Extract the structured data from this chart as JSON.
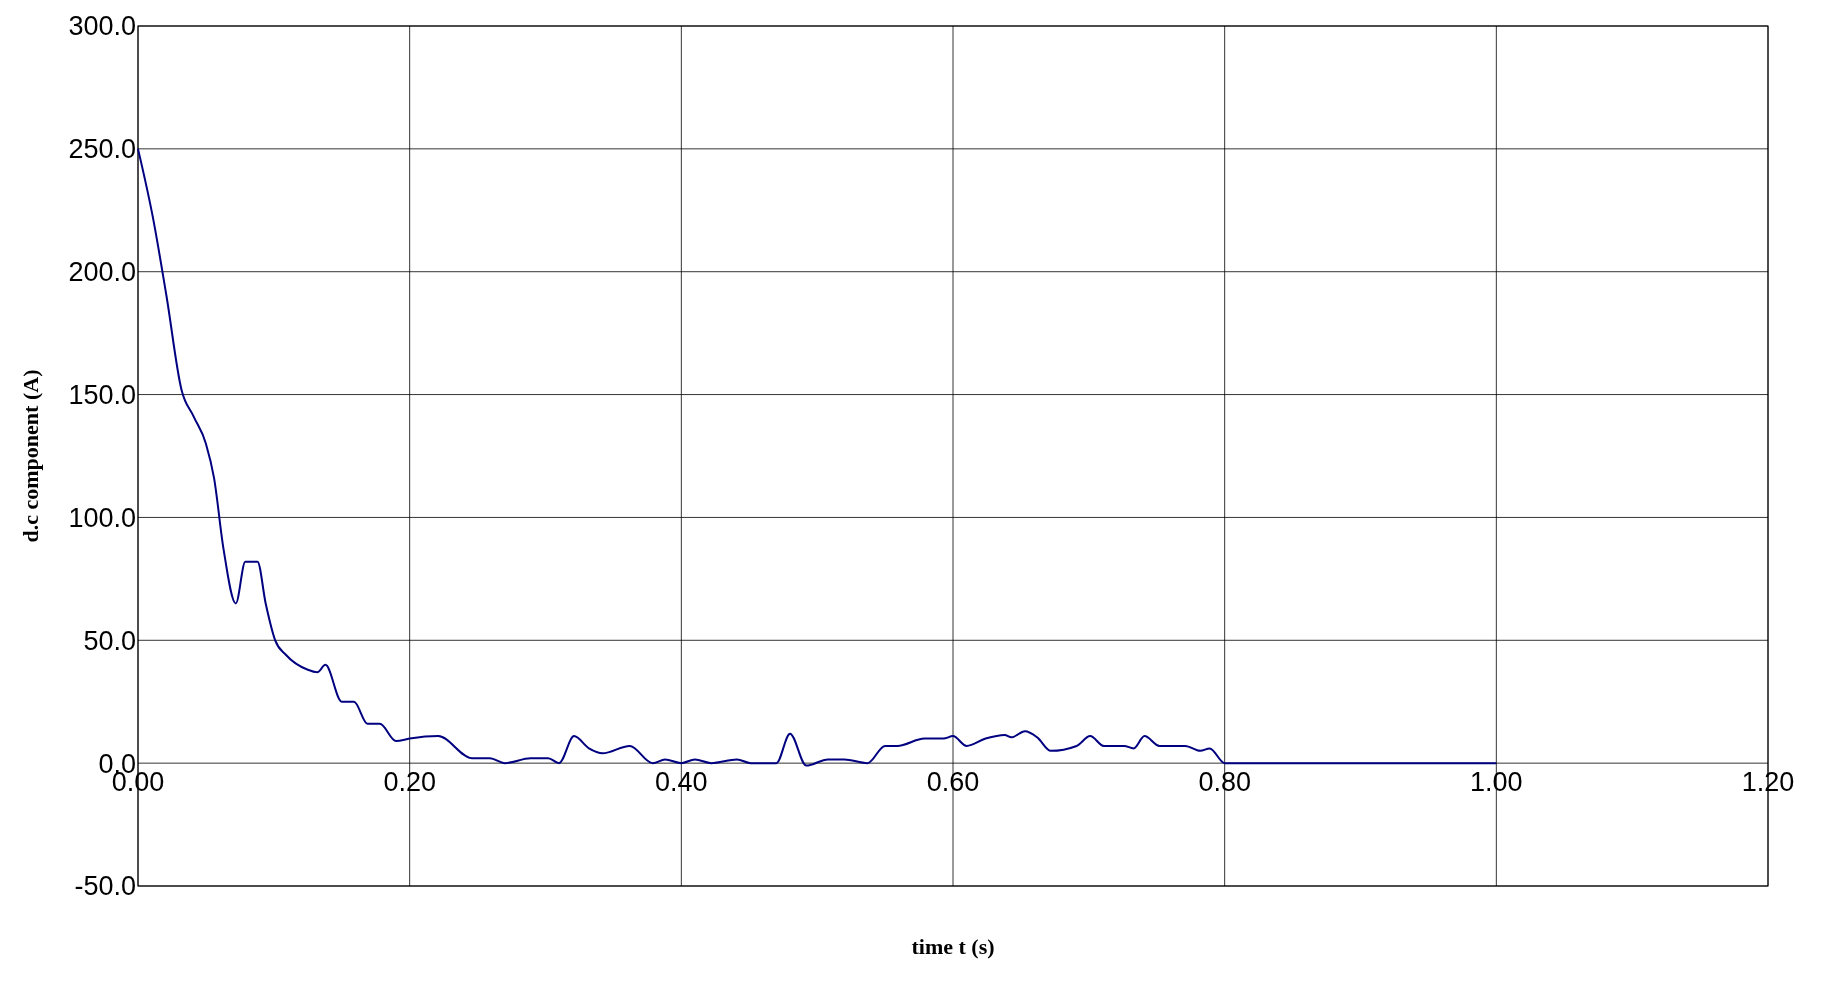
{
  "chart_data": {
    "type": "line",
    "xlabel": "time t (s)",
    "ylabel": "d.c component (A)",
    "x": [
      0,
      0.011,
      0.021,
      0.032,
      0.041,
      0.05,
      0.056,
      0.063,
      0.072,
      0.079,
      0.088,
      0.094,
      0.101,
      0.109,
      0.125,
      0.132,
      0.138,
      0.15,
      0.159,
      0.169,
      0.178,
      0.19,
      0.2,
      0.221,
      0.246,
      0.259,
      0.27,
      0.289,
      0.302,
      0.31,
      0.321,
      0.332,
      0.342,
      0.362,
      0.379,
      0.388,
      0.4,
      0.41,
      0.422,
      0.441,
      0.451,
      0.47,
      0.48,
      0.492,
      0.508,
      0.52,
      0.537,
      0.55,
      0.559,
      0.579,
      0.593,
      0.6,
      0.61,
      0.624,
      0.638,
      0.643,
      0.653,
      0.662,
      0.672,
      0.691,
      0.701,
      0.711,
      0.726,
      0.733,
      0.741,
      0.752,
      0.771,
      0.782,
      0.789,
      0.8,
      0.81,
      1.0
    ],
    "series": [
      {
        "color": "#000080",
        "values": [
          250,
          222,
          190,
          152,
          141,
          130,
          116,
          87,
          65,
          82,
          82,
          65,
          50,
          44,
          38,
          37,
          40,
          25,
          25,
          16,
          16,
          9,
          10,
          11,
          2,
          2,
          0,
          2,
          2,
          0,
          11,
          6,
          4,
          7,
          0,
          1.5,
          0,
          1.5,
          0,
          1.5,
          0,
          0,
          12,
          -1,
          1.5,
          1.5,
          0,
          7,
          7,
          10,
          10,
          11,
          7,
          10,
          11.5,
          10.5,
          13,
          10.5,
          5,
          7,
          11,
          7,
          7,
          6,
          11,
          7,
          7,
          5,
          6,
          0,
          0,
          0
        ]
      }
    ],
    "xlim": [
      0,
      1.2
    ],
    "ylim": [
      -50,
      300
    ],
    "xticks": [
      {
        "value": 0,
        "label": "0.00"
      },
      {
        "value": 0.2,
        "label": "0.20"
      },
      {
        "value": 0.4,
        "label": "0.40"
      },
      {
        "value": 0.6,
        "label": "0.60"
      },
      {
        "value": 0.8,
        "label": "0.80"
      },
      {
        "value": 1.0,
        "label": "1.00"
      },
      {
        "value": 1.2,
        "label": "1.20"
      }
    ],
    "yticks": [
      {
        "value": -50,
        "label": "-50.0"
      },
      {
        "value": 0,
        "label": "0.0"
      },
      {
        "value": 50,
        "label": "50.0"
      },
      {
        "value": 100,
        "label": "100.0"
      },
      {
        "value": 150,
        "label": "150.0"
      },
      {
        "value": 200,
        "label": "200.0"
      },
      {
        "value": 250,
        "label": "250.0"
      },
      {
        "value": 300,
        "label": "300.0"
      }
    ],
    "grid": true
  }
}
